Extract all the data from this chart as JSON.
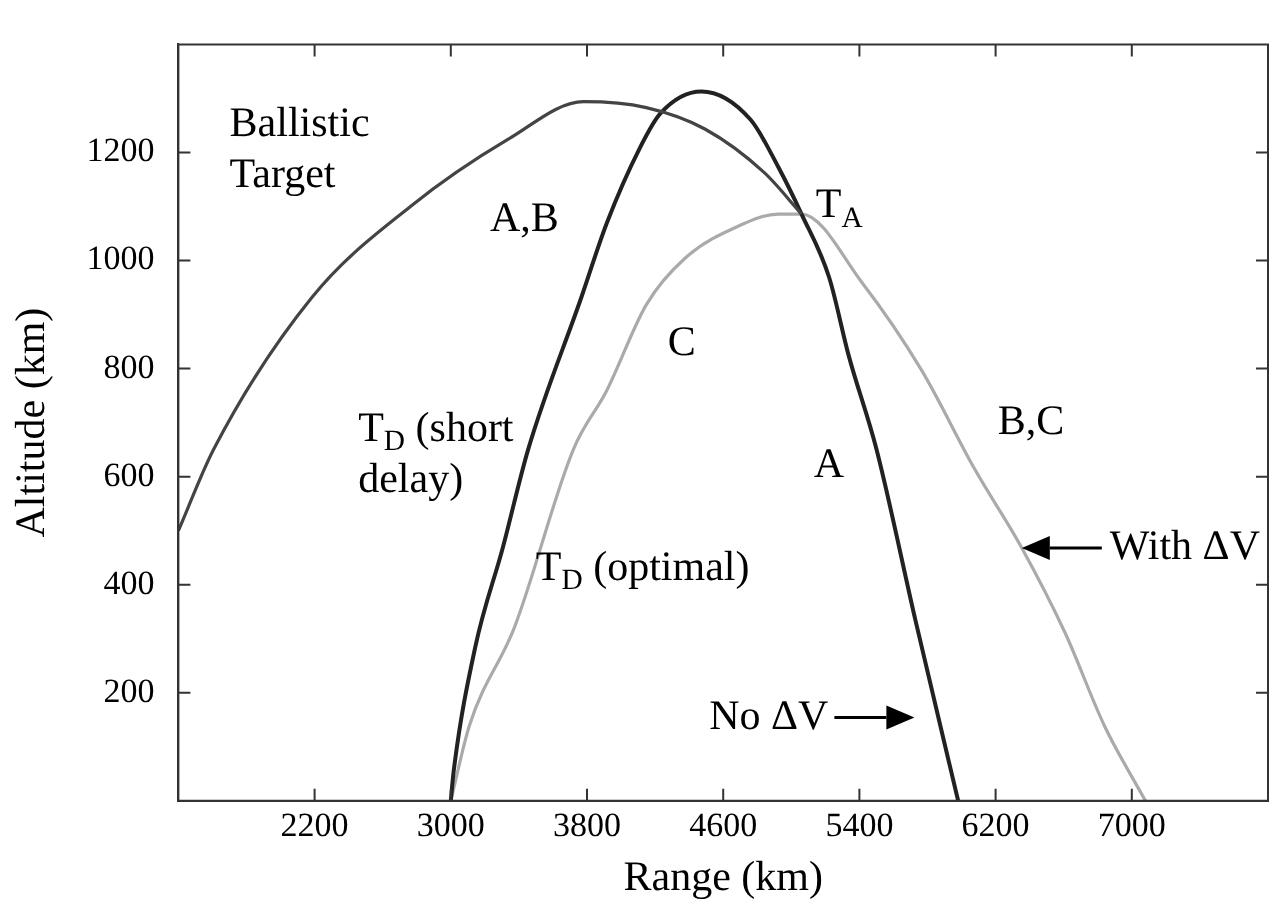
{
  "chart_data": {
    "type": "line",
    "xlabel": "Range (km)",
    "ylabel": "Altitude (km)",
    "xlim": [
      1400,
      7800
    ],
    "ylim": [
      0,
      1400
    ],
    "xticks": [
      2200,
      3000,
      3800,
      4600,
      5400,
      6200,
      7000
    ],
    "yticks": [
      200,
      400,
      600,
      800,
      1000,
      1200
    ],
    "marker": "none",
    "line_style": "solid",
    "legend": false,
    "series": [
      {
        "color": "#444444",
        "x": [
          1400,
          1608,
          2185,
          2763,
          3340,
          3780,
          4148,
          4495,
          4840,
          5060
        ],
        "values": [
          500,
          651,
          932,
          1100,
          1225,
          1294,
          1283,
          1243,
          1163,
          1086
        ]
      },
      {
        "color": "#222222",
        "x": [
          3000,
          3017,
          3144,
          3305,
          3455,
          3767,
          3917,
          4113,
          4230,
          4472,
          4760,
          4922,
          5060,
          5222,
          5338,
          5500,
          5730,
          5980
        ],
        "values": [
          0,
          55,
          285,
          468,
          651,
          932,
          1070,
          1210,
          1272,
          1313,
          1261,
          1174,
          1086,
          969,
          823,
          651,
          333,
          0
        ]
      },
      {
        "color": "#aaaaaa",
        "x": [
          3000,
          3109,
          3375,
          3721,
          3917,
          4148,
          4379,
          4691,
          4922,
          5060,
          5418,
          5765,
          6077,
          6354,
          6608,
          6839,
          7080
        ],
        "values": [
          0,
          139,
          322,
          651,
          760,
          918,
          1005,
          1064,
          1086,
          1086,
          958,
          797,
          614,
          468,
          311,
          139,
          0
        ]
      }
    ],
    "annotations": [
      "Ballistic Target",
      "A,B",
      "C",
      "T$_{A}$",
      "T$_{D}$ (short delay)",
      "A",
      "B,C",
      "T$_{D}$ (optimal)",
      {
        "text": "With ΔV",
        "x": 6354,
        "y": 468
      },
      {
        "text": "No ΔV",
        "x": 5864,
        "y": 154
      }
    ]
  }
}
